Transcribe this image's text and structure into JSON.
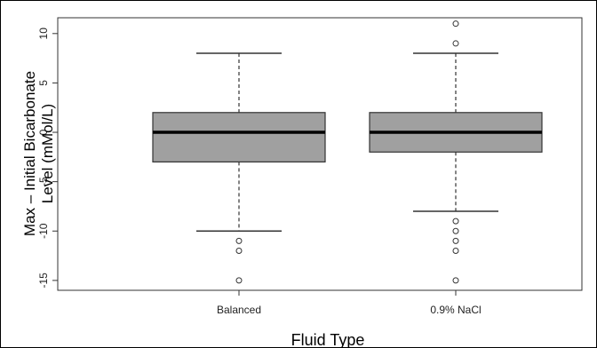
{
  "chart_data": {
    "type": "box",
    "xlabel": "Fluid Type",
    "ylabel_lines": [
      "Max – Initial Bicarbonate",
      "Level (mMol/L)"
    ],
    "categories": [
      "Balanced",
      "0.9% NaCl"
    ],
    "boxes": [
      {
        "name": "Balanced",
        "whisker_low": -10,
        "q1": -3,
        "median": 0,
        "q3": 2,
        "whisker_high": 8,
        "outliers": [
          -11,
          -12,
          -15
        ]
      },
      {
        "name": "0.9% NaCl",
        "whisker_low": -8,
        "q1": -2,
        "median": 0,
        "q3": 2,
        "whisker_high": 8,
        "outliers": [
          11,
          9,
          -9,
          -10,
          -11,
          -12,
          -15
        ]
      }
    ],
    "yticks": [
      -15,
      -10,
      -5,
      0,
      5,
      10
    ],
    "ylim": [
      -16,
      11.6
    ],
    "grid": false,
    "box_fill": "#a0a0a0",
    "line_color": "#333333"
  }
}
